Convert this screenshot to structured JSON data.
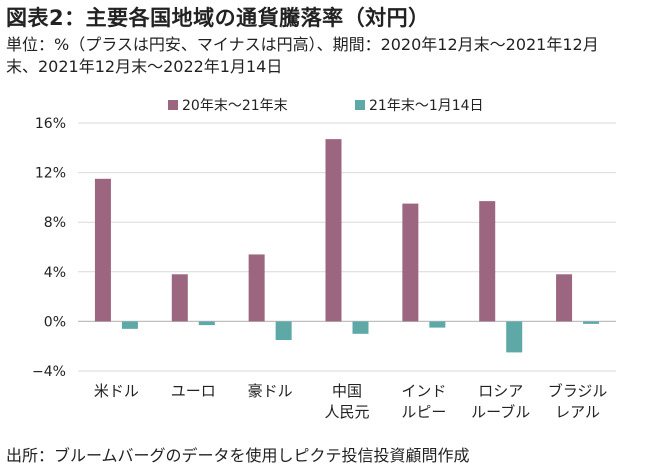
{
  "title": "図表2：主要各国地域の通貨騰落率（対円）",
  "subtitle": "単位：%（プラスは円安、マイナスは円高）、期間：2020年12月末～2021年12月末、2021年12月末～2022年1月14日",
  "source": "出所：ブルームバーグのデータを使用しピクテ投信投資顧問作成",
  "colors": {
    "series1": "#9c6681",
    "series2": "#5fa8a8"
  },
  "chart_data": {
    "type": "bar",
    "categories": [
      [
        "米ドル"
      ],
      [
        "ユーロ"
      ],
      [
        "豪ドル"
      ],
      [
        "中国",
        "人民元"
      ],
      [
        "インド",
        "ルピー"
      ],
      [
        "ロシア",
        "ルーブル"
      ],
      [
        "ブラジル",
        "レアル"
      ]
    ],
    "series": [
      {
        "name": "20年末～21年末",
        "values": [
          11.5,
          3.8,
          5.4,
          14.7,
          9.5,
          9.7,
          3.8
        ]
      },
      {
        "name": "21年末～1月14日",
        "values": [
          -0.6,
          -0.3,
          -1.5,
          -1.0,
          -0.5,
          -2.5,
          -0.2
        ]
      }
    ],
    "ylim": [
      -4,
      16
    ],
    "yticks": [
      -4,
      0,
      4,
      8,
      12,
      16
    ],
    "ytick_labels": [
      "−4%",
      "0%",
      "4%",
      "8%",
      "12%",
      "16%"
    ],
    "grid": true,
    "legend": "top-center"
  }
}
